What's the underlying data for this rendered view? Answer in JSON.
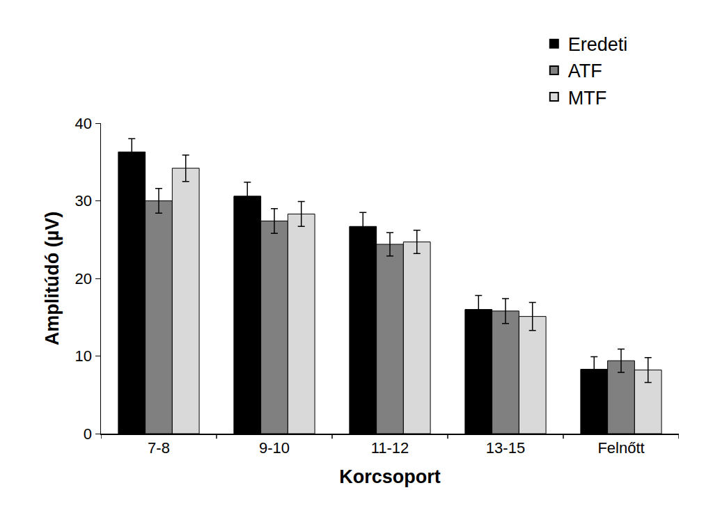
{
  "chart_data": {
    "type": "bar",
    "x_label": "Korcsoport",
    "y_label": "Amplitúdó (µV)",
    "categories": [
      "7-8",
      "9-10",
      "11-12",
      "13-15",
      "Felnőtt"
    ],
    "series": [
      {
        "name": "Eredeti",
        "color": "#000000",
        "values": [
          36.3,
          30.6,
          26.7,
          16.0,
          8.3
        ],
        "errors": [
          1.7,
          1.8,
          1.8,
          1.8,
          1.6
        ]
      },
      {
        "name": "ATF",
        "color": "#808080",
        "values": [
          30.0,
          27.4,
          24.4,
          15.8,
          9.4
        ],
        "errors": [
          1.6,
          1.6,
          1.5,
          1.6,
          1.5
        ]
      },
      {
        "name": "MTF",
        "color": "#d9d9d9",
        "values": [
          34.2,
          28.3,
          24.7,
          15.1,
          8.2
        ],
        "errors": [
          1.7,
          1.6,
          1.5,
          1.8,
          1.6
        ]
      }
    ],
    "ylim": [
      0,
      40
    ],
    "yticks": [
      0,
      10,
      20,
      30,
      40
    ],
    "grid": false,
    "legend": "top right"
  }
}
